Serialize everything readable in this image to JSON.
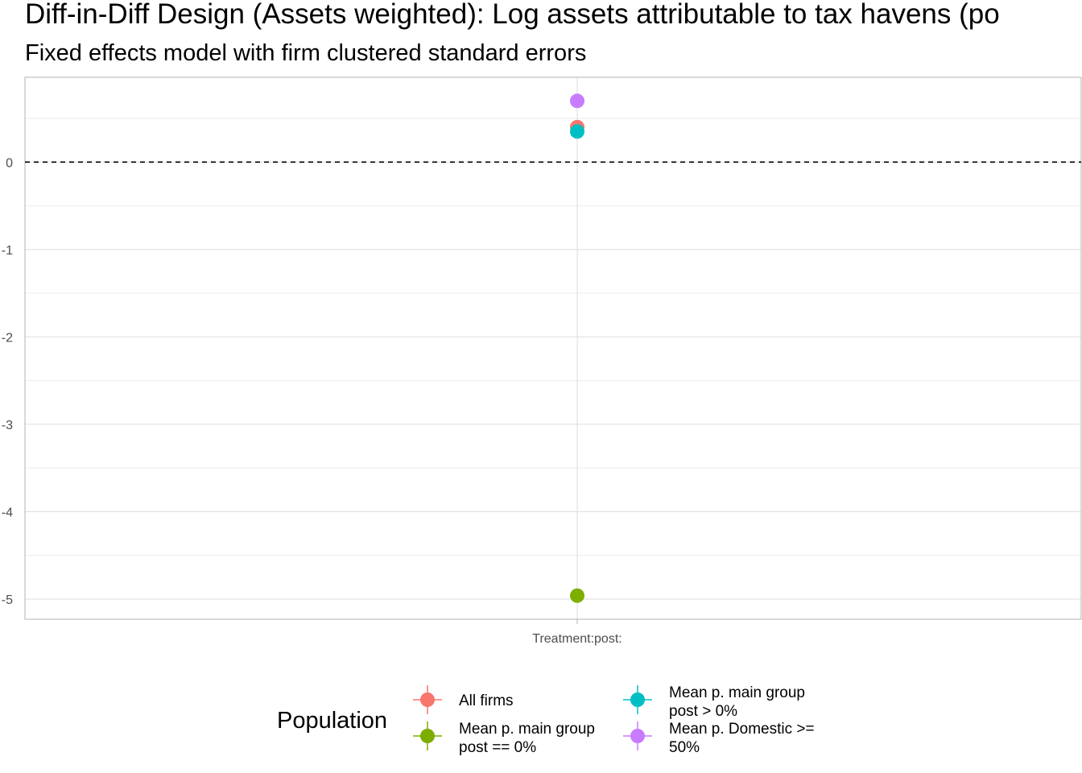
{
  "chart_data": {
    "type": "scatter",
    "title": "Diff-in-Diff Design (Assets weighted): Log assets attributable to tax havens (po",
    "subtitle": "Fixed effects model with firm clustered standard errors",
    "xlabel": "",
    "ylabel": "",
    "categories": [
      "Treatment:post:"
    ],
    "ylim": [
      -5.23,
      0.97
    ],
    "y_ticks": [
      0,
      -1,
      -2,
      -3,
      -4,
      -5
    ],
    "y_tick_labels": [
      "0",
      "-1",
      "-2",
      "-3",
      "-4",
      "-5"
    ],
    "reference_line": {
      "y": 0,
      "style": "dashed",
      "color": "#000000"
    },
    "grid": true,
    "legend": {
      "title": "Population",
      "position": "bottom"
    },
    "series": [
      {
        "name": "All firms",
        "color": "#F8766D",
        "values": [
          0.4
        ]
      },
      {
        "name": "Mean p. main group post == 0%",
        "lines": [
          "Mean p. main group",
          "post == 0%"
        ],
        "color": "#7CAE00",
        "values": [
          -4.96
        ]
      },
      {
        "name": "Mean p. main group post > 0%",
        "lines": [
          "Mean p. main group",
          "post > 0%"
        ],
        "color": "#00BFC4",
        "values": [
          0.35
        ]
      },
      {
        "name": "Mean p. Domestic >= 50%",
        "lines": [
          "Mean p. Domestic >=",
          "50%"
        ],
        "color": "#C77CFF",
        "values": [
          0.7
        ]
      }
    ]
  }
}
